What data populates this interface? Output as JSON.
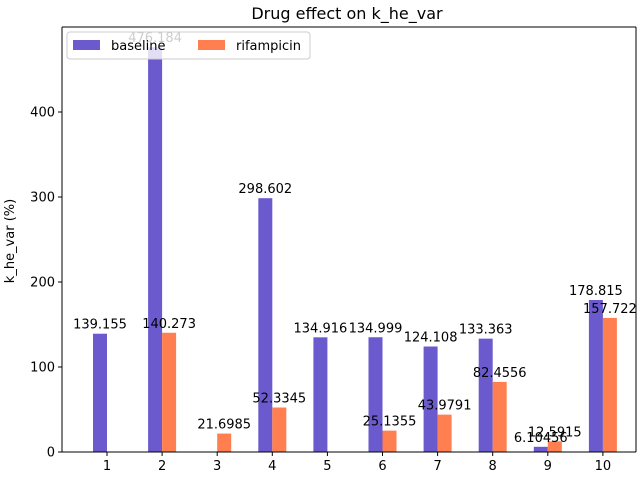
{
  "chart_data": {
    "type": "bar",
    "title": "Drug effect on k_he_var",
    "xlabel": "",
    "ylabel": "k_he_var (%)",
    "categories": [
      "1",
      "2",
      "3",
      "4",
      "5",
      "6",
      "7",
      "8",
      "9",
      "10"
    ],
    "series": [
      {
        "name": "baseline",
        "color": "#6a5acd",
        "values": [
          139.155,
          476.184,
          null,
          298.602,
          134.916,
          134.999,
          124.108,
          133.363,
          6.10456,
          178.815
        ],
        "labels": [
          "139.155",
          "476.184",
          "",
          "298.602",
          "134.916",
          "134.999",
          "124.108",
          "133.363",
          "6.10456",
          "178.815"
        ]
      },
      {
        "name": "rifampicin",
        "color": "#ff7f50",
        "values": [
          null,
          140.273,
          21.6985,
          52.3345,
          null,
          25.1355,
          43.9791,
          82.4556,
          12.5915,
          157.722
        ],
        "labels": [
          "",
          "140.273",
          "21.6985",
          "52.3345",
          "",
          "25.1355",
          "43.9791",
          "82.4556",
          "12.5915",
          "157.722"
        ]
      }
    ],
    "ylim": [
      0,
      500
    ],
    "yticks": [
      "0",
      "100",
      "200",
      "300",
      "400"
    ],
    "legend": "top-left",
    "grid": false
  }
}
